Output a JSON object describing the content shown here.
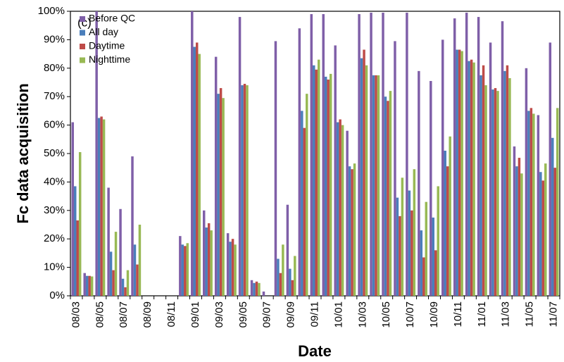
{
  "chart_data": {
    "type": "bar",
    "annotation": "(c)",
    "y_label": "Fc data acquisition",
    "x_label": "Date",
    "categories": [
      "08/03",
      null,
      "08/05",
      null,
      "08/07",
      null,
      "08/09",
      null,
      "08/11",
      null,
      "09/01",
      null,
      "09/03",
      null,
      "09/05",
      null,
      "09/07",
      null,
      "09/09",
      null,
      "09/11",
      null,
      "10/01",
      null,
      "10/03",
      null,
      "10/05",
      null,
      "10/07",
      null,
      "10/09",
      null,
      "10/11",
      null,
      "11/01",
      null,
      "11/03",
      null,
      "11/05",
      null,
      "11/07"
    ],
    "series": [
      {
        "name": "Before QC",
        "color": "#7f5fa8",
        "values": [
          61,
          8,
          100,
          38,
          30.5,
          49,
          0,
          0,
          0,
          21,
          100,
          30,
          84,
          22,
          98,
          5.5,
          1.5,
          89.5,
          32,
          94,
          99,
          99,
          88,
          58,
          99,
          99.5,
          99.5,
          89.5,
          99.5,
          79,
          75.5,
          90,
          97.5,
          99.5,
          98,
          89,
          96.5,
          52.5,
          80,
          63.5,
          89
        ]
      },
      {
        "name": "All day",
        "color": "#4a7ebb",
        "values": [
          38.5,
          7,
          62.5,
          15.5,
          6,
          18,
          0,
          0,
          0,
          18,
          87.5,
          24,
          71,
          19,
          74,
          4.5,
          0,
          13,
          9.5,
          65,
          81,
          77,
          61,
          45.5,
          83.5,
          77.5,
          70,
          34.5,
          37,
          23,
          27.5,
          51,
          86.5,
          82.5,
          77.5,
          72.5,
          79,
          45.5,
          65,
          43.5,
          55.5
        ]
      },
      {
        "name": "Daytime",
        "color": "#be4b48",
        "values": [
          26.5,
          7,
          63,
          9,
          3,
          11,
          0,
          0,
          0,
          17.5,
          89,
          25.5,
          73,
          20,
          74.5,
          5,
          0,
          8,
          5.5,
          59,
          79.5,
          76,
          62,
          44.5,
          86.5,
          77.5,
          68.5,
          28,
          30,
          13.5,
          16,
          45.5,
          86.5,
          83,
          81,
          73,
          81,
          48.5,
          66,
          40.5,
          45
        ]
      },
      {
        "name": "Nighttime",
        "color": "#98b954",
        "values": [
          50.5,
          6.8,
          62,
          22.5,
          9,
          25,
          0,
          0,
          0,
          18.5,
          85,
          23,
          69.5,
          18,
          74,
          4.5,
          0,
          18,
          14,
          71,
          83,
          78,
          60,
          46.5,
          81,
          77.5,
          72,
          41.5,
          44.5,
          33,
          38.5,
          56,
          86,
          82,
          74,
          72,
          76.5,
          43,
          64,
          46.5,
          66
        ]
      }
    ],
    "ylim": [
      0,
      100
    ],
    "yticks": [
      {
        "value": 0,
        "label": "0%"
      },
      {
        "value": 10,
        "label": "10%"
      },
      {
        "value": 20,
        "label": "20%"
      },
      {
        "value": 30,
        "label": "30%"
      },
      {
        "value": 40,
        "label": "40%"
      },
      {
        "value": 50,
        "label": "50%"
      },
      {
        "value": 60,
        "label": "60%"
      },
      {
        "value": 70,
        "label": "70%"
      },
      {
        "value": 80,
        "label": "80%"
      },
      {
        "value": 90,
        "label": "90%"
      },
      {
        "value": 100,
        "label": "100%"
      }
    ],
    "legend_position": "upper left",
    "grid": false
  }
}
